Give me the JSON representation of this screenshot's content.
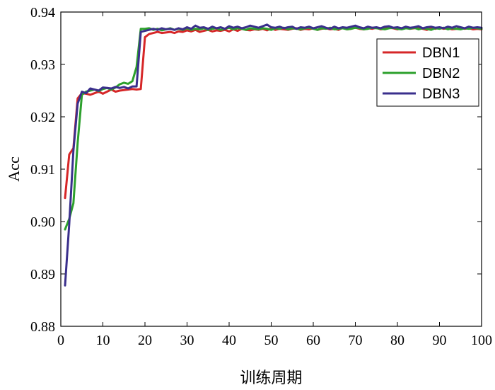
{
  "chart_data": {
    "type": "line",
    "xlabel": "训练周期",
    "ylabel": "Acc",
    "xlim": [
      0,
      100
    ],
    "ylim": [
      0.88,
      0.94
    ],
    "xticks": [
      0,
      10,
      20,
      30,
      40,
      50,
      60,
      70,
      80,
      90,
      100
    ],
    "yticks": [
      0.88,
      0.89,
      0.9,
      0.91,
      0.92,
      0.93,
      0.94
    ],
    "ytick_labels": [
      "0.88",
      "0.89",
      "0.90",
      "0.91",
      "0.92",
      "0.93",
      "0.94"
    ],
    "legend_position": "top-right",
    "grid": false,
    "series": [
      {
        "name": "DBN1",
        "color": "#d62728",
        "x": [
          1,
          2,
          3,
          4,
          5,
          6,
          7,
          8,
          9,
          10,
          11,
          12,
          13,
          14,
          15,
          16,
          17,
          18,
          19,
          20,
          21,
          22,
          23,
          24,
          25,
          26,
          27,
          28,
          29,
          30,
          31,
          32,
          33,
          34,
          35,
          36,
          37,
          38,
          39,
          40,
          41,
          42,
          43,
          44,
          45,
          46,
          47,
          48,
          49,
          50,
          51,
          52,
          53,
          54,
          55,
          56,
          57,
          58,
          59,
          60,
          61,
          62,
          63,
          64,
          65,
          66,
          67,
          68,
          69,
          70,
          71,
          72,
          73,
          74,
          75,
          76,
          77,
          78,
          79,
          80,
          81,
          82,
          83,
          84,
          85,
          86,
          87,
          88,
          89,
          90,
          91,
          92,
          93,
          94,
          95,
          96,
          97,
          98,
          99,
          100
        ],
        "values": [
          0.9045,
          0.9128,
          0.914,
          0.9235,
          0.9245,
          0.9244,
          0.9242,
          0.9245,
          0.9248,
          0.9244,
          0.9248,
          0.9252,
          0.9248,
          0.925,
          0.9251,
          0.9252,
          0.9253,
          0.9252,
          0.9253,
          0.9352,
          0.9358,
          0.936,
          0.9362,
          0.936,
          0.9361,
          0.9362,
          0.936,
          0.9363,
          0.9362,
          0.9365,
          0.9363,
          0.9366,
          0.9362,
          0.9364,
          0.9366,
          0.9363,
          0.9365,
          0.9364,
          0.9366,
          0.9363,
          0.9367,
          0.9364,
          0.9368,
          0.9366,
          0.9365,
          0.9367,
          0.9366,
          0.9368,
          0.9365,
          0.9369,
          0.9366,
          0.9368,
          0.9367,
          0.9366,
          0.9368,
          0.9369,
          0.9366,
          0.9368,
          0.9367,
          0.9369,
          0.9366,
          0.9368,
          0.9369,
          0.9367,
          0.9368,
          0.9366,
          0.937,
          0.9367,
          0.9368,
          0.937,
          0.9368,
          0.9367,
          0.9369,
          0.9368,
          0.937,
          0.9367,
          0.9368,
          0.937,
          0.9369,
          0.9367,
          0.9369,
          0.937,
          0.9368,
          0.9369,
          0.937,
          0.9368,
          0.9366,
          0.9369,
          0.9368,
          0.937,
          0.9368,
          0.9369,
          0.9367,
          0.9368,
          0.9369,
          0.9368,
          0.9369,
          0.9367,
          0.9368,
          0.9367
        ]
      },
      {
        "name": "DBN2",
        "color": "#2ca02c",
        "x": [
          1,
          2,
          3,
          4,
          5,
          6,
          7,
          8,
          9,
          10,
          11,
          12,
          13,
          14,
          15,
          16,
          17,
          18,
          19,
          20,
          21,
          22,
          23,
          24,
          25,
          26,
          27,
          28,
          29,
          30,
          31,
          32,
          33,
          34,
          35,
          36,
          37,
          38,
          39,
          40,
          41,
          42,
          43,
          44,
          45,
          46,
          47,
          48,
          49,
          50,
          51,
          52,
          53,
          54,
          55,
          56,
          57,
          58,
          59,
          60,
          61,
          62,
          63,
          64,
          65,
          66,
          67,
          68,
          69,
          70,
          71,
          72,
          73,
          74,
          75,
          76,
          77,
          78,
          79,
          80,
          81,
          82,
          83,
          84,
          85,
          86,
          87,
          88,
          89,
          90,
          91,
          92,
          93,
          94,
          95,
          96,
          97,
          98,
          99,
          100
        ],
        "values": [
          0.8985,
          0.9005,
          0.9035,
          0.915,
          0.9242,
          0.9248,
          0.925,
          0.9252,
          0.9249,
          0.9253,
          0.9255,
          0.9252,
          0.9256,
          0.9262,
          0.9265,
          0.9263,
          0.9268,
          0.9295,
          0.9368,
          0.9368,
          0.9369,
          0.9366,
          0.9368,
          0.9365,
          0.9367,
          0.9369,
          0.9366,
          0.9368,
          0.9366,
          0.9369,
          0.9366,
          0.9368,
          0.9367,
          0.9369,
          0.9366,
          0.9368,
          0.9369,
          0.9366,
          0.9368,
          0.937,
          0.9367,
          0.9369,
          0.9368,
          0.9366,
          0.9369,
          0.9368,
          0.9367,
          0.9369,
          0.9368,
          0.9366,
          0.9369,
          0.9368,
          0.937,
          0.9367,
          0.9369,
          0.9368,
          0.9367,
          0.9369,
          0.937,
          0.9368,
          0.9366,
          0.9369,
          0.9368,
          0.937,
          0.9367,
          0.9368,
          0.9369,
          0.9367,
          0.9368,
          0.937,
          0.9369,
          0.9367,
          0.9368,
          0.937,
          0.9369,
          0.9368,
          0.9367,
          0.9369,
          0.937,
          0.9368,
          0.9367,
          0.9369,
          0.9368,
          0.937,
          0.9367,
          0.9369,
          0.9368,
          0.9366,
          0.9369,
          0.9368,
          0.937,
          0.9367,
          0.9369,
          0.9368,
          0.9367,
          0.9369,
          0.9368,
          0.937,
          0.9369,
          0.9368
        ]
      },
      {
        "name": "DBN3",
        "color": "#3a2f8c",
        "x": [
          1,
          2,
          3,
          4,
          5,
          6,
          7,
          8,
          9,
          10,
          11,
          12,
          13,
          14,
          15,
          16,
          17,
          18,
          19,
          20,
          21,
          22,
          23,
          24,
          25,
          26,
          27,
          28,
          29,
          30,
          31,
          32,
          33,
          34,
          35,
          36,
          37,
          38,
          39,
          40,
          41,
          42,
          43,
          44,
          45,
          46,
          47,
          48,
          49,
          50,
          51,
          52,
          53,
          54,
          55,
          56,
          57,
          58,
          59,
          60,
          61,
          62,
          63,
          64,
          65,
          66,
          67,
          68,
          69,
          70,
          71,
          72,
          73,
          74,
          75,
          76,
          77,
          78,
          79,
          80,
          81,
          82,
          83,
          84,
          85,
          86,
          87,
          88,
          89,
          90,
          91,
          92,
          93,
          94,
          95,
          96,
          97,
          98,
          99,
          100
        ],
        "values": [
          0.8878,
          0.8995,
          0.9135,
          0.9225,
          0.9248,
          0.9245,
          0.9254,
          0.9252,
          0.925,
          0.9256,
          0.9255,
          0.9254,
          0.9257,
          0.9255,
          0.9257,
          0.9254,
          0.9258,
          0.9258,
          0.9362,
          0.9364,
          0.9366,
          0.9368,
          0.9366,
          0.9369,
          0.9367,
          0.9368,
          0.9366,
          0.9369,
          0.9367,
          0.9371,
          0.9368,
          0.9374,
          0.937,
          0.9371,
          0.9368,
          0.9372,
          0.9369,
          0.9371,
          0.9368,
          0.9373,
          0.937,
          0.9372,
          0.9369,
          0.9371,
          0.9374,
          0.9372,
          0.937,
          0.9373,
          0.9376,
          0.9371,
          0.937,
          0.9372,
          0.9369,
          0.9371,
          0.9372,
          0.9368,
          0.9371,
          0.937,
          0.9372,
          0.9369,
          0.9371,
          0.9373,
          0.937,
          0.9368,
          0.9372,
          0.9369,
          0.9371,
          0.937,
          0.9372,
          0.9374,
          0.9371,
          0.9369,
          0.9372,
          0.937,
          0.9371,
          0.9369,
          0.9372,
          0.9373,
          0.937,
          0.9371,
          0.9369,
          0.9372,
          0.937,
          0.9371,
          0.9373,
          0.9369,
          0.9371,
          0.9372,
          0.937,
          0.9371,
          0.9369,
          0.9372,
          0.937,
          0.9373,
          0.9371,
          0.9369,
          0.9372,
          0.937,
          0.9371,
          0.937
        ]
      }
    ]
  }
}
